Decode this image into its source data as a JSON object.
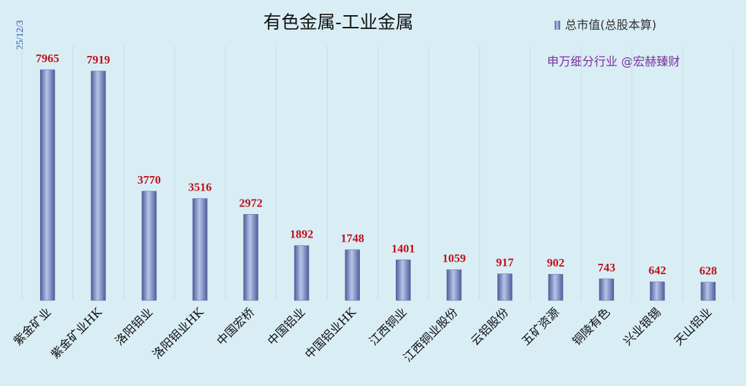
{
  "chart_data": {
    "type": "bar",
    "title": "有色金属-工业金属",
    "date_label": "25/12/3",
    "annotation": "申万细分行业 @宏赫臻财",
    "legend": [
      "总市值(总股本算)"
    ],
    "legend_position": "top-right",
    "categories": [
      "紫金矿业",
      "紫金矿业HK",
      "洛阳钼业",
      "洛阳钼业HK",
      "中国宏桥",
      "中国铝业",
      "中国铝业HK",
      "江西铜业",
      "江西铜业股份",
      "云铝股份",
      "五矿资源",
      "铜陵有色",
      "兴业银锡",
      "天山铝业"
    ],
    "series": [
      {
        "name": "总市值(总股本算)",
        "values": [
          7965,
          7919,
          3770,
          3516,
          2972,
          1892,
          1748,
          1401,
          1059,
          917,
          902,
          743,
          642,
          628
        ]
      }
    ],
    "value_labels": [
      "7965",
      "7919",
      "3770",
      "3516",
      "2972",
      "1892",
      "1748",
      "1401",
      "1059",
      "917",
      "902",
      "743",
      "642",
      "628"
    ],
    "ylim": [
      0,
      8800
    ],
    "grid": "vertical",
    "colors": {
      "bar": "#6f82bf",
      "bar_light": "#b7c4ea",
      "bar_dark": "#4c5f98",
      "value": "#c0101c",
      "annotation": "#7b2f9e"
    }
  }
}
